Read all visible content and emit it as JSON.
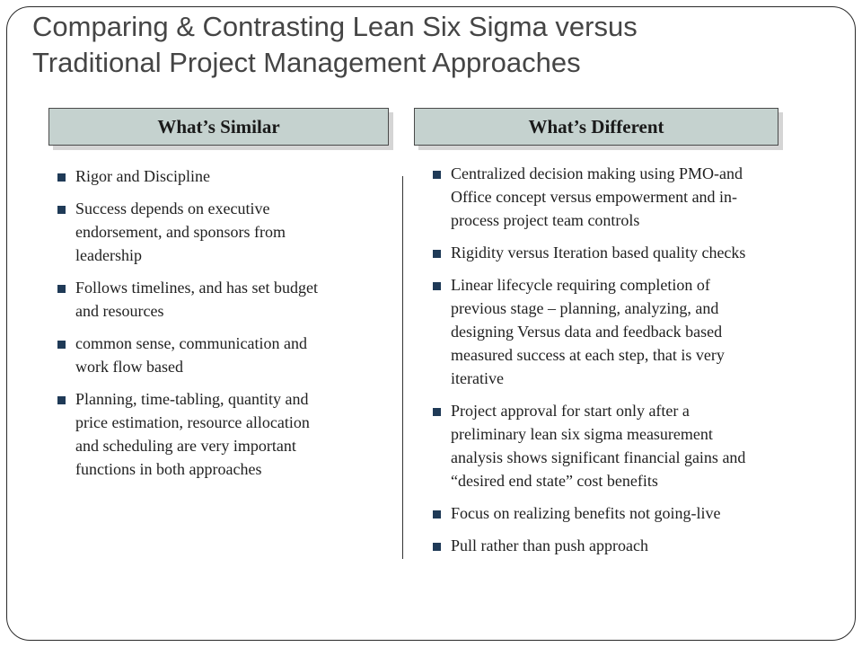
{
  "title": {
    "line1": "Comparing & Contrasting Lean Six Sigma versus",
    "line2": "Traditional Project Management Approaches"
  },
  "left_column": {
    "header": "What’s Similar",
    "items": [
      {
        "lines": [
          "Rigor and Discipline"
        ]
      },
      {
        "lines": [
          "Success depends on executive",
          "endorsement, and sponsors from",
          "leadership"
        ]
      },
      {
        "lines": [
          "Follows timelines, and has set budget",
          "and resources"
        ]
      },
      {
        "lines": [
          "common sense, communication and",
          "work flow based"
        ]
      },
      {
        "lines": [
          "Planning, time-tabling, quantity and",
          "price estimation, resource allocation",
          "and scheduling are very important",
          "functions in both approaches"
        ]
      }
    ]
  },
  "right_column": {
    "header": "What’s Different",
    "items": [
      {
        "lines": [
          "Centralized decision making using PMO-and",
          "Office concept versus empowerment and in-",
          "process project team controls"
        ]
      },
      {
        "lines": [
          "Rigidity versus Iteration based quality checks"
        ]
      },
      {
        "lines": [
          "Linear lifecycle requiring completion of",
          "previous stage – planning, analyzing, and",
          "designing Versus data and feedback based",
          "measured success at each step, that is very",
          "iterative"
        ]
      },
      {
        "lines": [
          "Project approval for start only after a",
          "preliminary lean six sigma measurement",
          "analysis shows significant financial gains and",
          "“desired end state” cost benefits"
        ]
      },
      {
        "lines": [
          "Focus on realizing benefits not going-live"
        ]
      },
      {
        "lines": [
          "Pull rather than push approach"
        ]
      }
    ]
  },
  "colors": {
    "title_text": "#454545",
    "header_fill": "#c5d2cf",
    "bullet_marker": "#1f3a57",
    "body_text": "#1f1f1f"
  }
}
